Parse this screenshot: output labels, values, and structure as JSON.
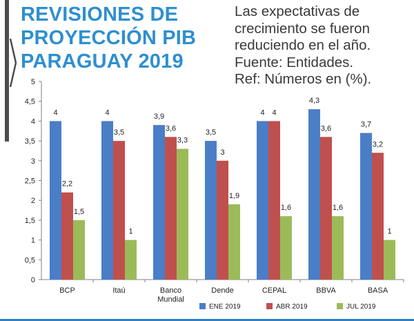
{
  "header": {
    "title_lines": [
      "REVISIONES DE",
      "PROYECCIÓN PIB",
      "PARAGUAY 2019"
    ],
    "subtitle_lines": [
      "Las expectativas de",
      "crecimiento se fueron",
      "reduciendo en el año.",
      "Fuente: Entidades.",
      "Ref: Números en (%)."
    ]
  },
  "colors": {
    "title": "#2e8fd0",
    "series": [
      "#4a7ec7",
      "#c0504d",
      "#9bbb59"
    ]
  },
  "chart_data": {
    "type": "bar",
    "categories": [
      [
        "BCP"
      ],
      [
        "Itaú"
      ],
      [
        "Banco",
        "Mundial"
      ],
      [
        "Dende"
      ],
      [
        "CEPAL"
      ],
      [
        "BBVA"
      ],
      [
        "BASA"
      ]
    ],
    "series": [
      {
        "name": "ENE 2019",
        "values": [
          4,
          4,
          3.9,
          3.5,
          4,
          4.3,
          3.7
        ],
        "labels": [
          "4",
          "4",
          "3,9",
          "3,5",
          "4",
          "4,3",
          "3,7"
        ]
      },
      {
        "name": "ABR 2019",
        "values": [
          2.2,
          3.5,
          3.6,
          3,
          4,
          3.6,
          3.2
        ],
        "labels": [
          "2,2",
          "3,5",
          "3,6",
          "3",
          "4",
          "3,6",
          "3,2"
        ]
      },
      {
        "name": "JUL 2019",
        "values": [
          1.5,
          1,
          3.3,
          1.9,
          1.6,
          1.6,
          1
        ],
        "labels": [
          "1,5",
          "1",
          "3,3",
          "1,9",
          "1,6",
          "1,6",
          "1"
        ]
      }
    ],
    "ylim": [
      0,
      5
    ],
    "yticks": [
      0,
      0.5,
      1,
      1.5,
      2,
      2.5,
      3,
      3.5,
      4,
      4.5,
      5
    ],
    "ytick_labels": [
      "0",
      "0,5",
      "1",
      "1,5",
      "2",
      "2,5",
      "3",
      "3,5",
      "4",
      "4,5",
      "5"
    ],
    "legend_position": "bottom",
    "grid": false
  }
}
